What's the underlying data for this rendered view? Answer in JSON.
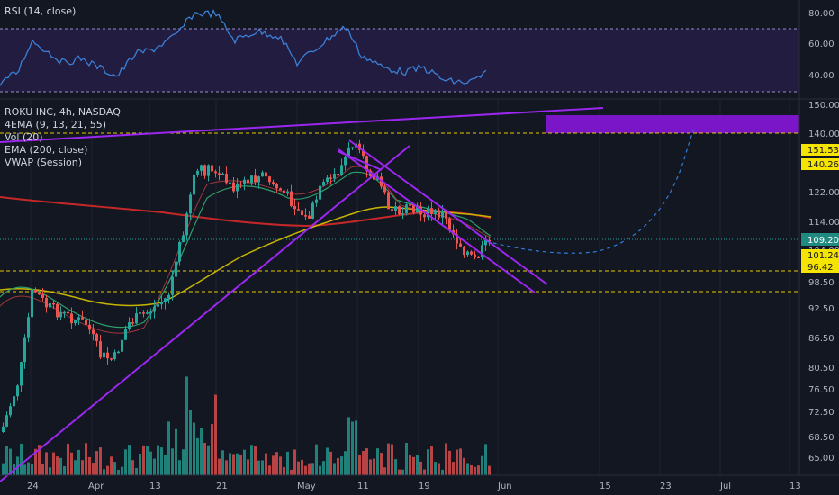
{
  "rsi_pane": {
    "label": "RSI (14, close)",
    "ticks": [
      "80.00",
      "60.00",
      "40.00"
    ],
    "colors": {
      "line": "#3a7fd5",
      "band": "#2a1f4d"
    }
  },
  "main_pane": {
    "legend": [
      "ROKU INC, 4h, NASDAQ",
      "4EMA (9, 13, 21, 55)",
      "Vol (20)",
      "EMA (200, close)",
      "VWAP (Session)"
    ],
    "price_ticks": [
      "150.00",
      "140.00",
      "122.00",
      "114.00",
      "104.00",
      "98.50",
      "92.50",
      "86.50",
      "80.50",
      "76.50",
      "72.50",
      "68.50",
      "65.00"
    ],
    "price_tags": [
      {
        "text": "151.53",
        "type": "yellow"
      },
      {
        "text": "140.26",
        "type": "yellow"
      },
      {
        "text": "109.20",
        "type": "teal"
      },
      {
        "text": "101.24",
        "type": "yellow"
      },
      {
        "text": "96.42",
        "type": "yellow"
      }
    ],
    "x_ticks": [
      "24",
      "Apr",
      "13",
      "21",
      "May",
      "11",
      "19",
      "Jun",
      "15",
      "23",
      "Jul",
      "13"
    ],
    "colors": {
      "up": "#26a69a",
      "down": "#ef5350",
      "trendline": "#9c27f0",
      "ema200": "#d32f2f",
      "ema_yellow": "#c8b400",
      "target_box": "#7a16c8",
      "dashed_level": "#e6c800",
      "projection": "#2f7bd8"
    }
  }
}
